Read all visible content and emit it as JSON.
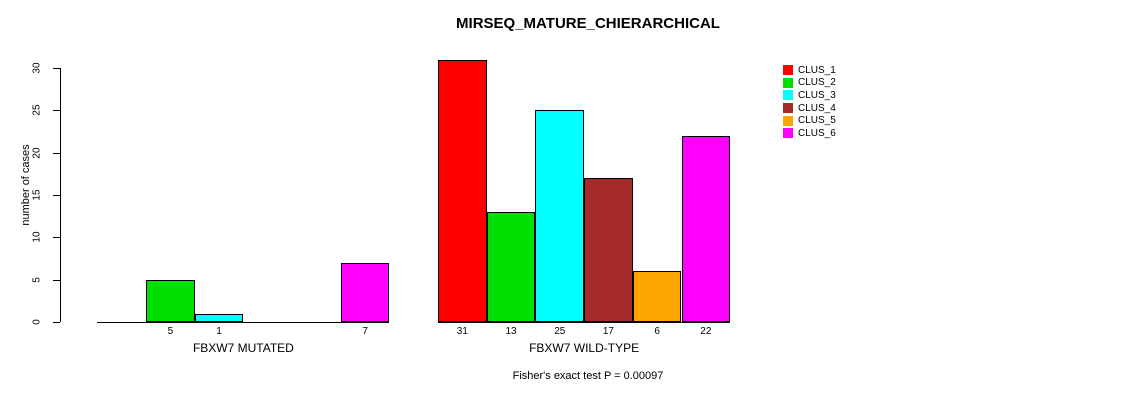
{
  "chart_data": {
    "type": "bar",
    "title": "MIRSEQ_MATURE_CHIERARCHICAL",
    "ylabel": "number of cases",
    "xlabel": "",
    "ylim": [
      0,
      30
    ],
    "yticks": [
      0,
      5,
      10,
      15,
      20,
      25,
      30
    ],
    "grid": false,
    "legend_position": "top-right",
    "bar_border_color": "#000000",
    "categories": [
      "FBXW7 MUTATED",
      "FBXW7 WILD-TYPE"
    ],
    "series": [
      {
        "name": "CLUS_1",
        "color": "#FF0000",
        "values": [
          0,
          31
        ]
      },
      {
        "name": "CLUS_2",
        "color": "#00E000",
        "values": [
          5,
          13
        ]
      },
      {
        "name": "CLUS_3",
        "color": "#00FFFF",
        "values": [
          1,
          25
        ]
      },
      {
        "name": "CLUS_4",
        "color": "#A52A2A",
        "values": [
          0,
          17
        ]
      },
      {
        "name": "CLUS_5",
        "color": "#FFA500",
        "values": [
          0,
          6
        ]
      },
      {
        "name": "CLUS_6",
        "color": "#FF00FF",
        "values": [
          7,
          22
        ]
      }
    ],
    "value_labels": "shown under each nonzero bar",
    "annotation": "Fisher's exact test P = 0.00097"
  }
}
